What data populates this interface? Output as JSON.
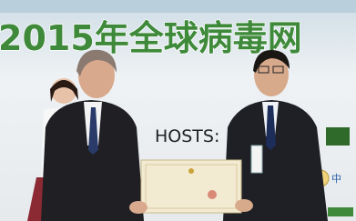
{
  "banner": {
    "title": "2015年全球病毒网"
  },
  "backdrop": {
    "label": "HOSTS:"
  }
}
